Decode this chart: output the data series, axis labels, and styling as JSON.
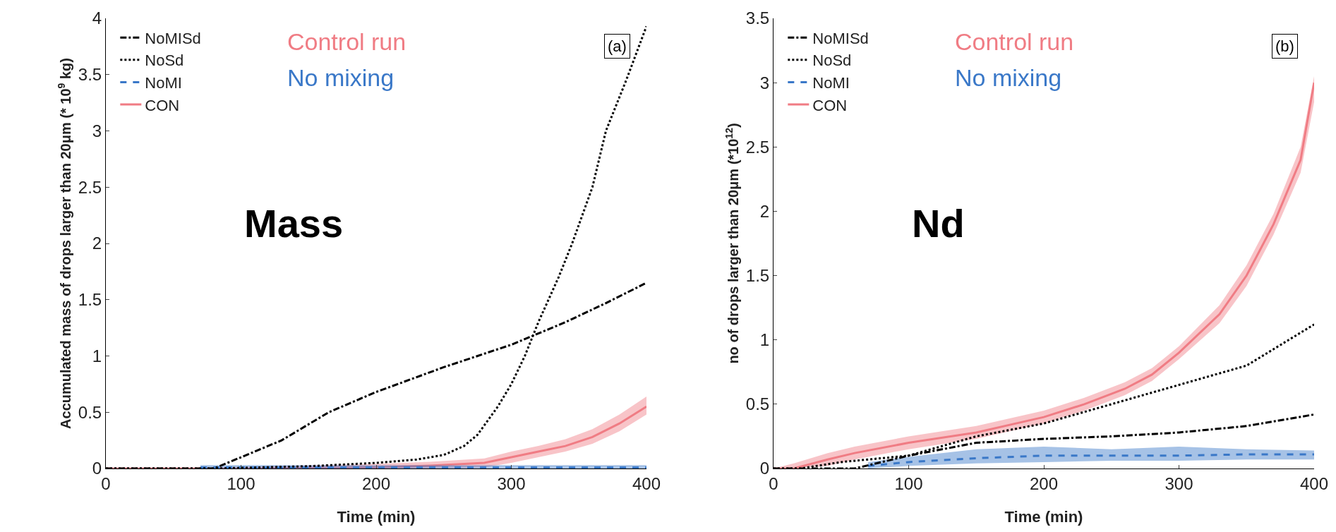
{
  "chart_data": [
    {
      "type": "line",
      "xlabel": "Time (min)",
      "ylabel": "Accumulated mass of drops larger than 20μm (* 10$^{9}$ kg)",
      "xlim": [
        0,
        400
      ],
      "ylim": [
        0,
        4
      ],
      "xticks": [
        0,
        100,
        200,
        300,
        400
      ],
      "yticks": [
        0,
        0.5,
        1,
        1.5,
        2,
        2.5,
        3,
        3.5,
        4
      ],
      "grid": false,
      "legend": "top left",
      "annotations": [
        "Control run",
        "No mixing",
        "(a)",
        "Mass"
      ],
      "series": [
        {
          "name": "CON",
          "color": "#f07c84",
          "line_style": "solid",
          "x": [
            0,
            70,
            120,
            160,
            200,
            240,
            280,
            300,
            320,
            340,
            360,
            380,
            400
          ],
          "values": [
            0,
            0,
            0,
            0.005,
            0.01,
            0.025,
            0.05,
            0.1,
            0.15,
            0.2,
            0.28,
            0.4,
            0.55
          ],
          "lower": [
            0,
            0,
            0,
            0,
            0,
            0,
            0.01,
            0.05,
            0.1,
            0.15,
            0.22,
            0.33,
            0.48
          ],
          "upper": [
            0,
            0,
            0.02,
            0.03,
            0.04,
            0.06,
            0.09,
            0.15,
            0.2,
            0.26,
            0.35,
            0.48,
            0.64
          ]
        },
        {
          "name": "NoMI",
          "color": "#3a78c8",
          "line_style": "dashed",
          "x": [
            70,
            100,
            150,
            200,
            250,
            300,
            350,
            400
          ],
          "values": [
            0.01,
            0.01,
            0.01,
            0.01,
            0.01,
            0.01,
            0.01,
            0.01
          ],
          "lower": [
            0,
            0,
            0,
            0,
            0,
            0,
            0,
            0
          ],
          "upper": [
            0.03,
            0.03,
            0.03,
            0.03,
            0.03,
            0.03,
            0.03,
            0.03
          ]
        },
        {
          "name": "NoSd",
          "color": "#000000",
          "line_style": "dotted",
          "x": [
            0,
            80,
            150,
            200,
            230,
            250,
            265,
            275,
            290,
            300,
            310,
            320,
            335,
            345,
            360,
            370,
            385,
            400
          ],
          "values": [
            0,
            0,
            0.02,
            0.05,
            0.08,
            0.12,
            0.2,
            0.3,
            0.55,
            0.75,
            1.0,
            1.3,
            1.7,
            2.0,
            2.5,
            3.0,
            3.45,
            3.93
          ]
        },
        {
          "name": "NoMISd",
          "color": "#000000",
          "line_style": "dashdot",
          "x": [
            0,
            80,
            100,
            130,
            165,
            200,
            250,
            300,
            340,
            370,
            400
          ],
          "values": [
            0,
            0,
            0.1,
            0.25,
            0.5,
            0.68,
            0.9,
            1.1,
            1.3,
            1.47,
            1.65
          ]
        }
      ]
    },
    {
      "type": "line",
      "xlabel": "Time (min)",
      "ylabel": "no of drops larger than 20μm (*10$^{12}$)",
      "xlim": [
        0,
        400
      ],
      "ylim": [
        0,
        3.5
      ],
      "xticks": [
        0,
        100,
        200,
        300,
        400
      ],
      "yticks": [
        0,
        0.5,
        1,
        1.5,
        2,
        2.5,
        3,
        3.5
      ],
      "grid": false,
      "legend": "top left",
      "annotations": [
        "Control run",
        "No mixing",
        "(b)",
        "Nd"
      ],
      "series": [
        {
          "name": "CON",
          "color": "#f07c84",
          "line_style": "solid",
          "x": [
            0,
            15,
            40,
            60,
            100,
            150,
            200,
            230,
            260,
            280,
            300,
            330,
            350,
            370,
            390,
            400
          ],
          "values": [
            0,
            0,
            0.07,
            0.12,
            0.2,
            0.28,
            0.4,
            0.5,
            0.62,
            0.73,
            0.9,
            1.2,
            1.5,
            1.9,
            2.4,
            3.0
          ],
          "lower": [
            0,
            0,
            0.02,
            0.07,
            0.15,
            0.23,
            0.35,
            0.45,
            0.57,
            0.68,
            0.85,
            1.13,
            1.42,
            1.82,
            2.3,
            2.85
          ],
          "upper": [
            0,
            0.04,
            0.12,
            0.17,
            0.25,
            0.33,
            0.45,
            0.55,
            0.67,
            0.78,
            0.95,
            1.27,
            1.58,
            1.98,
            2.5,
            3.05
          ]
        },
        {
          "name": "NoMI",
          "color": "#3a78c8",
          "line_style": "dashed",
          "x": [
            70,
            100,
            150,
            200,
            250,
            300,
            350,
            400
          ],
          "values": [
            0.02,
            0.05,
            0.08,
            0.1,
            0.1,
            0.1,
            0.11,
            0.11
          ],
          "lower": [
            0,
            0.02,
            0.04,
            0.05,
            0.06,
            0.06,
            0.07,
            0.07
          ],
          "upper": [
            0.05,
            0.09,
            0.15,
            0.17,
            0.15,
            0.17,
            0.15,
            0.14
          ]
        },
        {
          "name": "NoSd",
          "color": "#000000",
          "line_style": "dotted",
          "x": [
            0,
            20,
            50,
            100,
            150,
            200,
            250,
            300,
            350,
            400
          ],
          "values": [
            0,
            0,
            0.05,
            0.1,
            0.25,
            0.35,
            0.5,
            0.65,
            0.8,
            1.12
          ]
        },
        {
          "name": "NoMISd",
          "color": "#000000",
          "line_style": "dashdot",
          "x": [
            0,
            60,
            100,
            150,
            200,
            250,
            300,
            350,
            400
          ],
          "values": [
            0,
            0,
            0.1,
            0.2,
            0.23,
            0.25,
            0.28,
            0.33,
            0.42
          ]
        }
      ]
    }
  ]
}
